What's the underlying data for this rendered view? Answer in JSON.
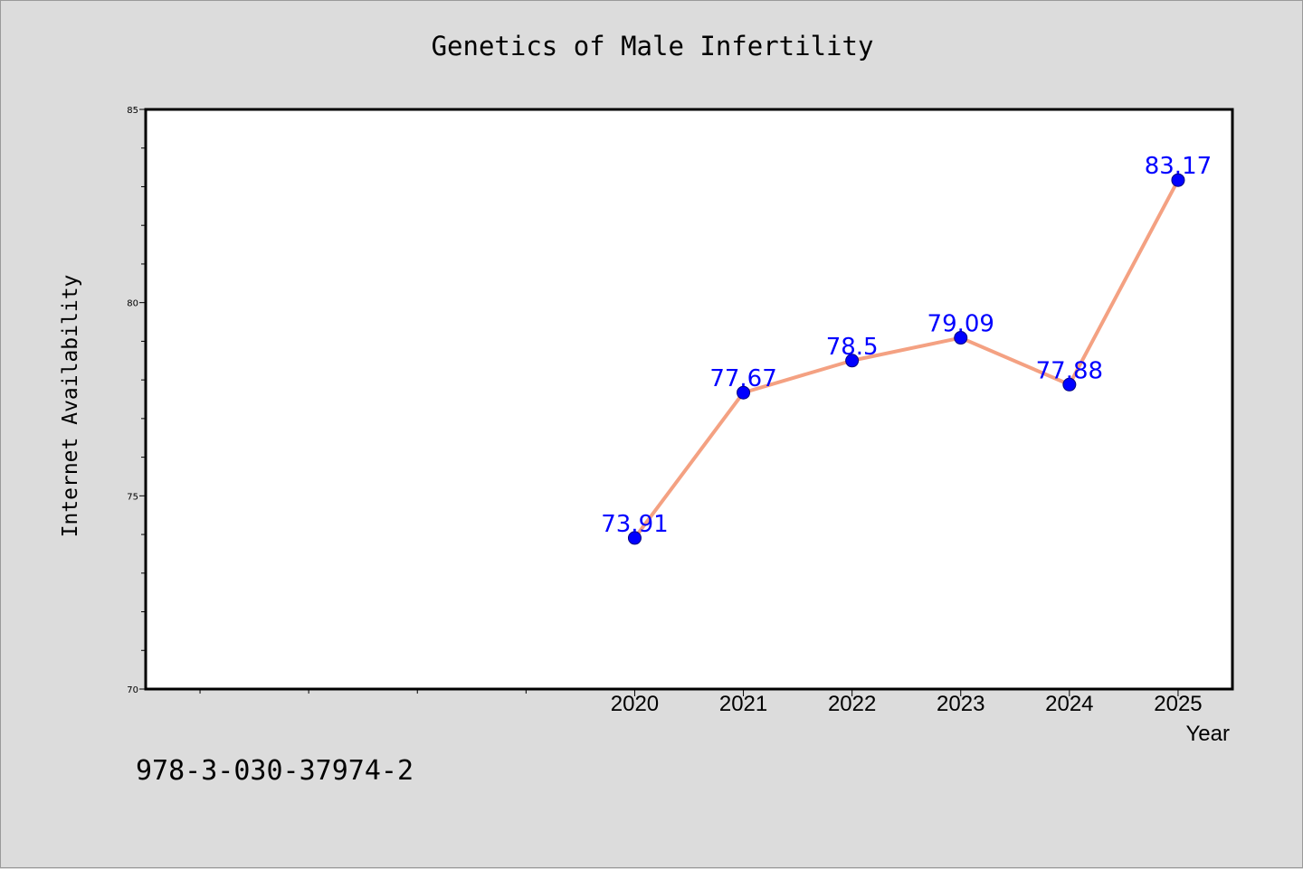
{
  "title": "Genetics of Male Infertility",
  "footer_text": "978-3-030-37974-2",
  "colors": {
    "background": "#dcdcdc",
    "plot_background": "#ffffff",
    "line": "#f4a182",
    "marker": "#0000ff",
    "data_label": "#0000ff"
  },
  "chart_data": {
    "type": "line",
    "title": "Genetics of Male Infertility",
    "xlabel": "Year",
    "ylabel": "Internet Availability",
    "categories": [
      "2020",
      "2021",
      "2022",
      "2023",
      "2024",
      "2025"
    ],
    "x": [
      2020,
      2021,
      2022,
      2023,
      2024,
      2025
    ],
    "values": [
      73.91,
      77.67,
      78.5,
      79.09,
      77.88,
      83.17
    ],
    "data_labels": [
      "73.91",
      "77.67",
      "78.5",
      "79.09",
      "77.88",
      "83.17"
    ],
    "xlim": [
      2015.5,
      2025.5
    ],
    "ylim": [
      70,
      85
    ],
    "y_ticks": [
      70,
      75,
      80,
      85
    ],
    "y_tick_labels": [
      "70",
      "75",
      "80",
      "85"
    ],
    "grid": false,
    "legend": "none"
  }
}
